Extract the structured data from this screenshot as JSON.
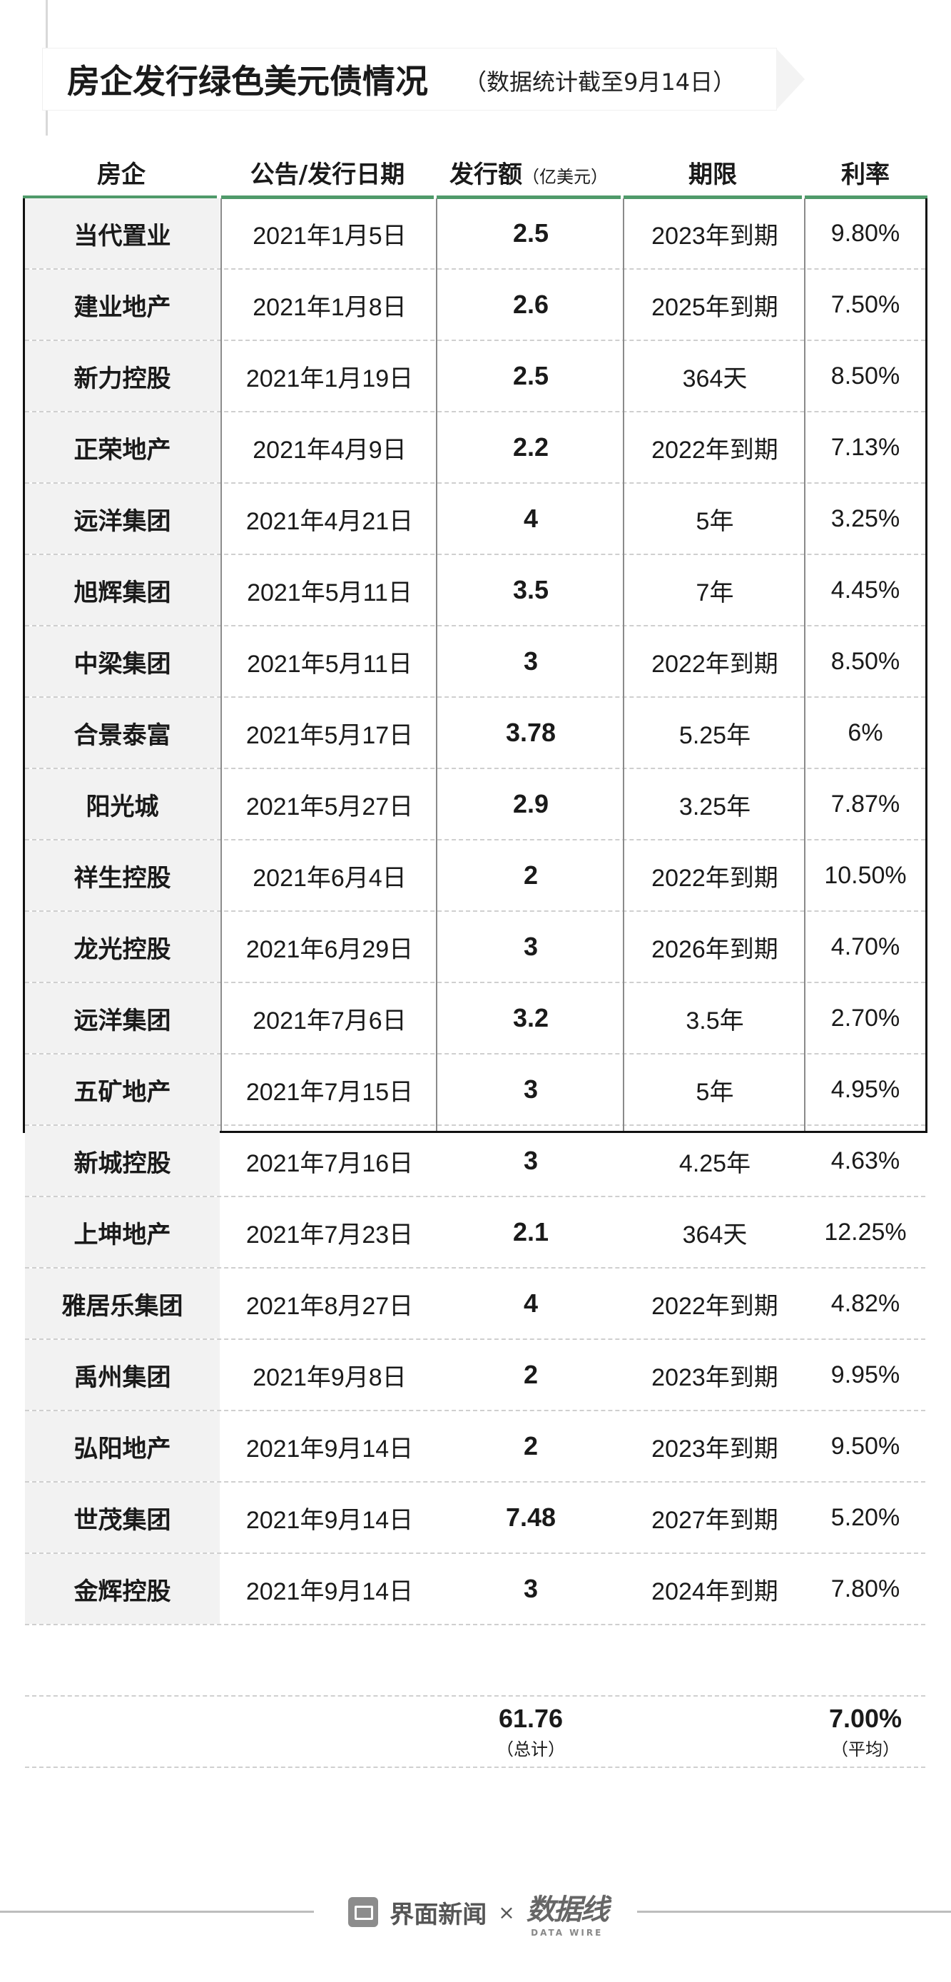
{
  "title": "房企发行绿色美元债情况",
  "subtitle": "（数据统计截至9月14日）",
  "headers": {
    "company": "房企",
    "date": "公告/发行日期",
    "amount": "发行额",
    "amount_unit": "（亿美元）",
    "term": "期限",
    "rate": "利率"
  },
  "rows": [
    {
      "company": "当代置业",
      "date": "2021年1月5日",
      "amount": "2.5",
      "term": "2023年到期",
      "rate": "9.80%"
    },
    {
      "company": "建业地产",
      "date": "2021年1月8日",
      "amount": "2.6",
      "term": "2025年到期",
      "rate": "7.50%"
    },
    {
      "company": "新力控股",
      "date": "2021年1月19日",
      "amount": "2.5",
      "term": "364天",
      "rate": "8.50%"
    },
    {
      "company": "正荣地产",
      "date": "2021年4月9日",
      "amount": "2.2",
      "term": "2022年到期",
      "rate": "7.13%"
    },
    {
      "company": "远洋集团",
      "date": "2021年4月21日",
      "amount": "4",
      "term": "5年",
      "rate": "3.25%"
    },
    {
      "company": "旭辉集团",
      "date": "2021年5月11日",
      "amount": "3.5",
      "term": "7年",
      "rate": "4.45%"
    },
    {
      "company": "中梁集团",
      "date": "2021年5月11日",
      "amount": "3",
      "term": "2022年到期",
      "rate": "8.50%"
    },
    {
      "company": "合景泰富",
      "date": "2021年5月17日",
      "amount": "3.78",
      "term": "5.25年",
      "rate": "6%"
    },
    {
      "company": "阳光城",
      "date": "2021年5月27日",
      "amount": "2.9",
      "term": "3.25年",
      "rate": "7.87%"
    },
    {
      "company": "祥生控股",
      "date": "2021年6月4日",
      "amount": "2",
      "term": "2022年到期",
      "rate": "10.50%"
    },
    {
      "company": "龙光控股",
      "date": "2021年6月29日",
      "amount": "3",
      "term": "2026年到期",
      "rate": "4.70%"
    },
    {
      "company": "远洋集团",
      "date": "2021年7月6日",
      "amount": "3.2",
      "term": "3.5年",
      "rate": "2.70%"
    },
    {
      "company": "五矿地产",
      "date": "2021年7月15日",
      "amount": "3",
      "term": "5年",
      "rate": "4.95%"
    },
    {
      "company": "新城控股",
      "date": "2021年7月16日",
      "amount": "3",
      "term": "4.25年",
      "rate": "4.63%"
    },
    {
      "company": "上坤地产",
      "date": "2021年7月23日",
      "amount": "2.1",
      "term": "364天",
      "rate": "12.25%"
    },
    {
      "company": "雅居乐集团",
      "date": "2021年8月27日",
      "amount": "4",
      "term": "2022年到期",
      "rate": "4.82%"
    },
    {
      "company": "禹州集团",
      "date": "2021年9月8日",
      "amount": "2",
      "term": "2023年到期",
      "rate": "9.95%"
    },
    {
      "company": "弘阳地产",
      "date": "2021年9月14日",
      "amount": "2",
      "term": "2023年到期",
      "rate": "9.50%"
    },
    {
      "company": "世茂集团",
      "date": "2021年9月14日",
      "amount": "7.48",
      "term": "2027年到期",
      "rate": "5.20%"
    },
    {
      "company": "金辉控股",
      "date": "2021年9月14日",
      "amount": "3",
      "term": "2024年到期",
      "rate": "7.80%"
    }
  ],
  "summary": {
    "total_amount": "61.76",
    "total_label": "（总计）",
    "avg_rate": "7.00%",
    "avg_label": "（平均）"
  },
  "footer": {
    "brand1": "界面新闻",
    "separator": "×",
    "brand2": "数据线",
    "brand2_sub": "DATA WIRE"
  }
}
